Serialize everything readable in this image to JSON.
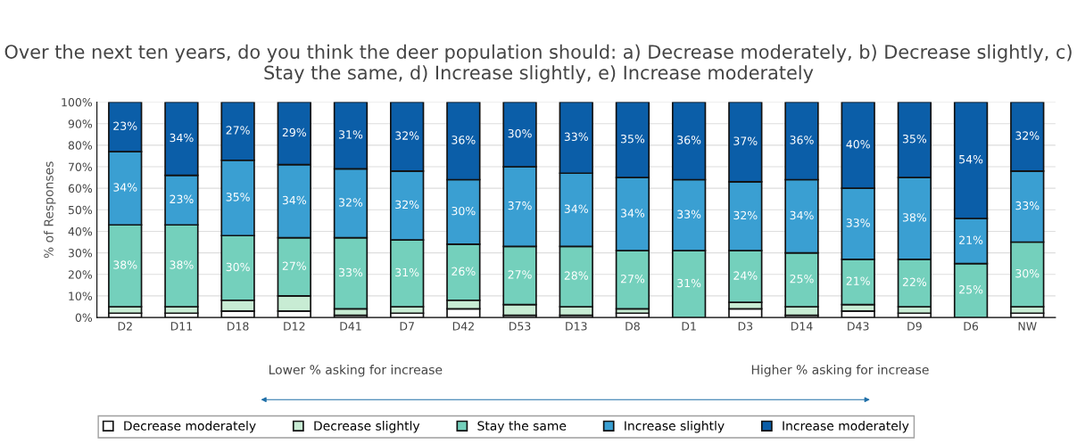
{
  "chart_data": {
    "type": "bar",
    "stacked": true,
    "title": "Over the next ten years, do you think the deer population should: a) Decrease moderately, b) Decrease slightly, c) Stay the same, d) Increase slightly, e) Increase moderately",
    "ylabel": "% of Responses",
    "categories": [
      "D2",
      "D11",
      "D18",
      "D12",
      "D41",
      "D7",
      "D42",
      "D53",
      "D13",
      "D8",
      "D1",
      "D3",
      "D14",
      "D43",
      "D9",
      "D6",
      "NW"
    ],
    "series": [
      {
        "name": "Decrease moderately",
        "color": "#ffffff",
        "values": [
          2,
          2,
          3,
          3,
          1,
          2,
          4,
          1,
          1,
          2,
          0,
          4,
          1,
          3,
          2,
          0,
          2
        ]
      },
      {
        "name": "Decrease slightly",
        "color": "#c8ecd4",
        "values": [
          3,
          3,
          5,
          7,
          3,
          3,
          4,
          5,
          4,
          2,
          0,
          3,
          4,
          3,
          3,
          0,
          3
        ]
      },
      {
        "name": "Stay the same",
        "color": "#74d0bc",
        "values": [
          38,
          38,
          30,
          27,
          33,
          31,
          26,
          27,
          28,
          27,
          31,
          24,
          25,
          21,
          22,
          25,
          30
        ],
        "value_labels": [
          "38%",
          "38%",
          "30%",
          "27%",
          "33%",
          "31%",
          "26%",
          "27%",
          "28%",
          "27%",
          "31%",
          "24%",
          "25%",
          "21%",
          "22%",
          "25%",
          "30%"
        ]
      },
      {
        "name": "Increase slightly",
        "color": "#3a9fd2",
        "values": [
          34,
          23,
          35,
          34,
          32,
          32,
          30,
          37,
          34,
          34,
          33,
          32,
          34,
          33,
          38,
          21,
          33
        ],
        "value_labels": [
          "34%",
          "23%",
          "35%",
          "34%",
          "32%",
          "32%",
          "30%",
          "37%",
          "34%",
          "34%",
          "33%",
          "32%",
          "34%",
          "33%",
          "38%",
          "21%",
          "33%"
        ]
      },
      {
        "name": "Increase moderately",
        "color": "#0b5ea8",
        "values": [
          23,
          34,
          27,
          29,
          31,
          32,
          36,
          30,
          33,
          35,
          36,
          37,
          36,
          40,
          35,
          54,
          32
        ],
        "value_labels": [
          "23%",
          "34%",
          "27%",
          "29%",
          "31%",
          "32%",
          "36%",
          "30%",
          "33%",
          "35%",
          "36%",
          "37%",
          "36%",
          "40%",
          "35%",
          "54%",
          "32%"
        ]
      }
    ],
    "ylim": [
      0,
      100
    ],
    "yticks": [
      {
        "value": 0,
        "label": "0%"
      },
      {
        "value": 10,
        "label": "10%"
      },
      {
        "value": 20,
        "label": "20%"
      },
      {
        "value": 30,
        "label": "30%"
      },
      {
        "value": 40,
        "label": "40%"
      },
      {
        "value": 50,
        "label": "50%"
      },
      {
        "value": 60,
        "label": "60%"
      },
      {
        "value": 70,
        "label": "70%"
      },
      {
        "value": 80,
        "label": "80%"
      },
      {
        "value": 90,
        "label": "90%"
      },
      {
        "value": 100,
        "label": "100%"
      }
    ],
    "grid": "y",
    "legend": "bottom",
    "annotations": [
      "Lower % asking for increase",
      "Higher % asking for increase"
    ]
  }
}
